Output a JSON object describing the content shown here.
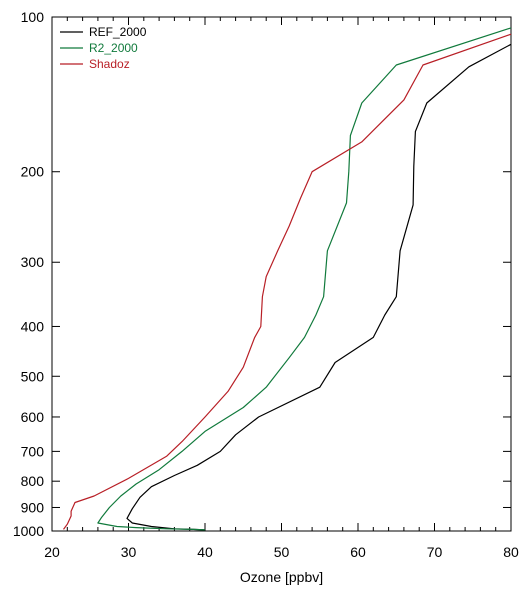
{
  "chart_data": {
    "type": "line",
    "title": "",
    "xlabel": "Ozone [ppbv]",
    "ylabel": "",
    "xlim": [
      20,
      80
    ],
    "ylim": [
      100,
      1000
    ],
    "yscale": "log",
    "y_inverted": true,
    "grid": false,
    "legend_position": "top-left",
    "x_ticks": [
      20,
      30,
      40,
      50,
      60,
      70,
      80
    ],
    "x_tick_labels": [
      "20",
      "30",
      "40",
      "50",
      "60",
      "70",
      "80"
    ],
    "y_ticks": [
      100,
      200,
      300,
      400,
      500,
      600,
      700,
      800,
      900,
      1000
    ],
    "y_tick_labels": [
      "100",
      "200",
      "300",
      "400",
      "500",
      "600",
      "700",
      "800",
      "900",
      "1000"
    ],
    "series": [
      {
        "name": "REF_2000",
        "color": "#000000",
        "points": [
          [
            80,
            113
          ],
          [
            74.5,
            125
          ],
          [
            69,
            147
          ],
          [
            67.5,
            167
          ],
          [
            67.3,
            195
          ],
          [
            67.2,
            232
          ],
          [
            65.5,
            285
          ],
          [
            65,
            350
          ],
          [
            63.5,
            380
          ],
          [
            62,
            420
          ],
          [
            57,
            470
          ],
          [
            55,
            525
          ],
          [
            47,
            600
          ],
          [
            44,
            650
          ],
          [
            42,
            700
          ],
          [
            39,
            745
          ],
          [
            36,
            780
          ],
          [
            33,
            820
          ],
          [
            31.5,
            860
          ],
          [
            30.5,
            905
          ],
          [
            29.8,
            945
          ],
          [
            30.5,
            965
          ],
          [
            33,
            980
          ],
          [
            36,
            990
          ],
          [
            38.5,
            993
          ],
          [
            40,
            995
          ]
        ]
      },
      {
        "name": "R2_2000",
        "color": "#117a3c",
        "points": [
          [
            80,
            105
          ],
          [
            65,
            124
          ],
          [
            60.5,
            147
          ],
          [
            59,
            170
          ],
          [
            58.8,
            200
          ],
          [
            58.5,
            230
          ],
          [
            56,
            285
          ],
          [
            55.5,
            350
          ],
          [
            54.5,
            380
          ],
          [
            53,
            420
          ],
          [
            51,
            460
          ],
          [
            48,
            525
          ],
          [
            45,
            575
          ],
          [
            40,
            640
          ],
          [
            37,
            700
          ],
          [
            34,
            760
          ],
          [
            31,
            810
          ],
          [
            29,
            855
          ],
          [
            27.5,
            900
          ],
          [
            26.5,
            940
          ],
          [
            26,
            965
          ],
          [
            28.5,
            980
          ],
          [
            31,
            985
          ],
          [
            35,
            990
          ],
          [
            38.5,
            993
          ],
          [
            40,
            995
          ]
        ]
      },
      {
        "name": "Shadoz",
        "color": "#b81f26",
        "points": [
          [
            80,
            108
          ],
          [
            68.5,
            124
          ],
          [
            66,
            145
          ],
          [
            60.5,
            175
          ],
          [
            54,
            200
          ],
          [
            52.5,
            225
          ],
          [
            51,
            255
          ],
          [
            49.5,
            285
          ],
          [
            48,
            320
          ],
          [
            47.5,
            350
          ],
          [
            47.3,
            400
          ],
          [
            46.5,
            420
          ],
          [
            45,
            480
          ],
          [
            43,
            535
          ],
          [
            40,
            600
          ],
          [
            37,
            670
          ],
          [
            35,
            715
          ],
          [
            30,
            790
          ],
          [
            25.5,
            855
          ],
          [
            23,
            880
          ],
          [
            22.5,
            915
          ],
          [
            22.5,
            935
          ],
          [
            22,
            970
          ],
          [
            21.5,
            993
          ]
        ]
      }
    ]
  }
}
